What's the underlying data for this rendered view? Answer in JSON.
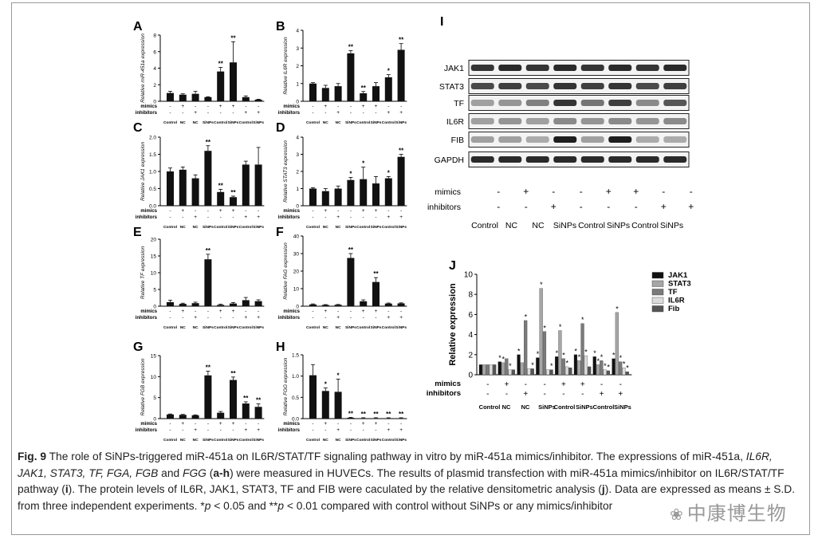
{
  "colors": {
    "bar_black": "#111111",
    "jak1": "#111111",
    "stat3": "#a6a6a6",
    "tf": "#7a7a7a",
    "il6r": "#dcdcdc",
    "fib": "#555555",
    "frame": "#9a9a9a"
  },
  "conditions": [
    "Control",
    "NC",
    "NC",
    "SiNPs",
    "Control",
    "SiNPs",
    "Control",
    "SiNPs"
  ],
  "mimics_row": [
    "-",
    "+",
    "-",
    "-",
    "+",
    "+",
    "-",
    "-"
  ],
  "inhibitors_row": [
    "-",
    "-",
    "+",
    "-",
    "-",
    "-",
    "+",
    "+"
  ],
  "row_labels": {
    "mimics": "mimics",
    "inhibitors": "inhibitors"
  },
  "chart_data": [
    {
      "panel": "A",
      "type": "bar",
      "ylabel": "Relative miR-451a expression",
      "ylim": [
        0,
        8
      ],
      "yticks": [
        0,
        2,
        4,
        6,
        8
      ],
      "values": [
        1.0,
        0.8,
        0.9,
        0.5,
        3.6,
        4.7,
        0.5,
        0.2
      ],
      "errors": [
        0.2,
        0.1,
        0.3,
        0.05,
        0.5,
        2.5,
        0.15,
        0.05
      ],
      "marks": [
        "",
        "",
        "",
        "",
        "**",
        "**",
        "",
        ""
      ]
    },
    {
      "panel": "B",
      "type": "bar",
      "ylabel": "Relative IL6R expression",
      "ylim": [
        0,
        4
      ],
      "yticks": [
        0,
        1,
        2,
        3,
        4
      ],
      "values": [
        1.0,
        0.75,
        0.85,
        2.7,
        0.45,
        0.85,
        1.35,
        2.9
      ],
      "errors": [
        0.05,
        0.15,
        0.15,
        0.15,
        0.1,
        0.2,
        0.15,
        0.35
      ],
      "marks": [
        "",
        "",
        "",
        "**",
        "**",
        "",
        "*",
        "**"
      ]
    },
    {
      "panel": "C",
      "type": "bar",
      "ylabel": "Relative JAK1 expression",
      "ylim": [
        0,
        2.0
      ],
      "yticks": [
        0,
        0.5,
        1.0,
        1.5,
        2.0
      ],
      "ytick_labels": [
        "0.0",
        "0.5",
        "1.0",
        "1.5",
        "2.0"
      ],
      "values": [
        1.0,
        1.05,
        0.8,
        1.6,
        0.4,
        0.25,
        1.2,
        1.2
      ],
      "errors": [
        0.1,
        0.08,
        0.1,
        0.15,
        0.08,
        0.03,
        0.1,
        0.5
      ],
      "marks": [
        "",
        "",
        "",
        "**",
        "**",
        "**",
        "",
        ""
      ]
    },
    {
      "panel": "D",
      "type": "bar",
      "ylabel": "Relative STAT3 expression",
      "ylim": [
        0,
        4
      ],
      "yticks": [
        0,
        1,
        2,
        3,
        4
      ],
      "values": [
        1.0,
        0.85,
        1.0,
        1.5,
        1.55,
        1.3,
        1.6,
        2.85
      ],
      "errors": [
        0.05,
        0.15,
        0.15,
        0.15,
        0.7,
        0.4,
        0.1,
        0.15
      ],
      "marks": [
        "",
        "",
        "",
        "*",
        "*",
        "",
        "*",
        "**"
      ]
    },
    {
      "panel": "E",
      "type": "bar",
      "ylabel": "Relative TF expression",
      "ylim": [
        0,
        20
      ],
      "yticks": [
        0,
        5,
        10,
        15,
        20
      ],
      "values": [
        1.2,
        0.7,
        0.9,
        14.0,
        0.4,
        0.8,
        1.8,
        1.5
      ],
      "errors": [
        0.6,
        0.2,
        0.3,
        1.5,
        0.2,
        0.3,
        0.8,
        0.4
      ],
      "marks": [
        "",
        "",
        "",
        "**",
        "",
        "",
        "",
        ""
      ]
    },
    {
      "panel": "F",
      "type": "bar",
      "ylabel": "Relative FAG expression",
      "ylim": [
        0,
        40
      ],
      "yticks": [
        0,
        10,
        20,
        30,
        40
      ],
      "values": [
        1.0,
        0.7,
        0.8,
        27.5,
        2.8,
        13.8,
        1.5,
        1.6
      ],
      "errors": [
        0.3,
        0.2,
        0.2,
        2.5,
        0.8,
        2.5,
        0.3,
        0.3
      ],
      "marks": [
        "",
        "",
        "",
        "**",
        "",
        "**",
        "",
        ""
      ]
    },
    {
      "panel": "G",
      "type": "bar",
      "ylabel": "Relative FGB expression",
      "ylim": [
        0,
        15
      ],
      "yticks": [
        0,
        5,
        10,
        15
      ],
      "values": [
        1.0,
        0.9,
        0.8,
        10.3,
        1.4,
        9.2,
        3.6,
        2.8
      ],
      "errors": [
        0.1,
        0.1,
        0.1,
        1.0,
        0.3,
        0.7,
        0.4,
        0.7
      ],
      "marks": [
        "",
        "",
        "",
        "**",
        "",
        "**",
        "**",
        "**"
      ]
    },
    {
      "panel": "H",
      "type": "bar",
      "ylabel": "Relative FGG expression",
      "ylim": [
        0,
        1.5
      ],
      "yticks": [
        0,
        0.5,
        1.0,
        1.5
      ],
      "ytick_labels": [
        "0.0",
        "0.5",
        "1.0",
        "1.5"
      ],
      "values": [
        1.02,
        0.65,
        0.63,
        0.02,
        0.01,
        0.01,
        0.01,
        0.01
      ],
      "errors": [
        0.25,
        0.07,
        0.3,
        0.01,
        0.01,
        0.01,
        0.01,
        0.01
      ],
      "marks": [
        "",
        "*",
        "*",
        "**",
        "**",
        "**",
        "**",
        "**"
      ]
    },
    {
      "panel": "J",
      "type": "bar",
      "ylabel": "Relative expression",
      "ylim": [
        0,
        10
      ],
      "yticks": [
        0,
        2,
        4,
        6,
        8,
        10
      ],
      "ytick_labels": [
        "0",
        "2",
        "4",
        "6",
        "8",
        "10"
      ],
      "series": [
        {
          "name": "JAK1",
          "values": [
            1.0,
            1.3,
            2.0,
            1.7,
            1.8,
            2.0,
            1.8,
            1.6
          ],
          "marks": [
            "",
            "*",
            "*",
            "*",
            "*",
            "*",
            "*",
            "*"
          ]
        },
        {
          "name": "STAT3",
          "values": [
            1.0,
            1.2,
            1.2,
            8.6,
            4.4,
            1.4,
            1.0,
            6.2
          ],
          "marks": [
            "",
            "*",
            "",
            "*",
            "*",
            "*",
            "*",
            "*"
          ]
        },
        {
          "name": "TF",
          "values": [
            1.0,
            1.6,
            5.4,
            4.3,
            1.6,
            5.1,
            1.4,
            1.3
          ],
          "marks": [
            "",
            "",
            "*",
            "*",
            "*",
            "*",
            "*",
            "*"
          ]
        },
        {
          "name": "IL6R",
          "values": [
            1.0,
            0.5,
            0.6,
            0.5,
            0.8,
            1.9,
            0.5,
            0.7
          ],
          "marks": [
            "",
            "*",
            "",
            "",
            "*",
            "*",
            "*",
            "*"
          ]
        },
        {
          "name": "Fib",
          "values": [
            1.0,
            0.5,
            0.6,
            0.5,
            0.7,
            0.8,
            0.4,
            0.3
          ],
          "marks": [
            "",
            "",
            "*",
            "*",
            "",
            "",
            "*",
            "*"
          ]
        }
      ]
    }
  ],
  "blot": {
    "panel": "I",
    "bands": [
      "JAK1",
      "STAT3",
      "TF",
      "IL6R",
      "FIB",
      "GAPDH"
    ],
    "band_intensity": [
      [
        0.85,
        0.9,
        0.85,
        0.9,
        0.85,
        0.9,
        0.85,
        0.9
      ],
      [
        0.75,
        0.8,
        0.75,
        0.85,
        0.8,
        0.85,
        0.75,
        0.8
      ],
      [
        0.35,
        0.4,
        0.5,
        0.85,
        0.55,
        0.8,
        0.45,
        0.7
      ],
      [
        0.35,
        0.4,
        0.35,
        0.45,
        0.4,
        0.45,
        0.4,
        0.45
      ],
      [
        0.35,
        0.35,
        0.3,
        0.95,
        0.35,
        0.95,
        0.3,
        0.3
      ],
      [
        0.9,
        0.9,
        0.9,
        0.9,
        0.9,
        0.9,
        0.9,
        0.9
      ]
    ]
  },
  "caption": {
    "fig_label": "Fig. 9",
    "text_1": " The role of SiNPs-triggered miR-451a on IL6R/STAT/TF signaling pathway in vitro by miR-451a mimics/inhibitor. The expressions of miR-451a, ",
    "genes": "IL6R, JAK1, STAT3, TF, FGA, FGB",
    "and_1": " and ",
    "fgg": "FGG",
    "paren_open": " (",
    "ah": "a-h",
    "text_2": ") were measured in HUVECs. The results of plasmid transfection with miR-451a mimics/inhibitor on IL6R/STAT/TF pathway (",
    "i": "i",
    "text_3": "). The protein levels of IL6R, JAK1, STAT3, TF and FIB were caculated by the relative densitometric analysis (",
    "j": "j",
    "text_4": "). Data are expressed as means ± S.D. from three independent experiments. *",
    "p1": "p",
    "text_5": " < 0.05 and **",
    "p2": "p",
    "text_6": " < 0.01 compared with control without SiNPs or any mimics/inhibitor"
  },
  "watermark": {
    "logo": "❀",
    "text": "中康博生物"
  }
}
